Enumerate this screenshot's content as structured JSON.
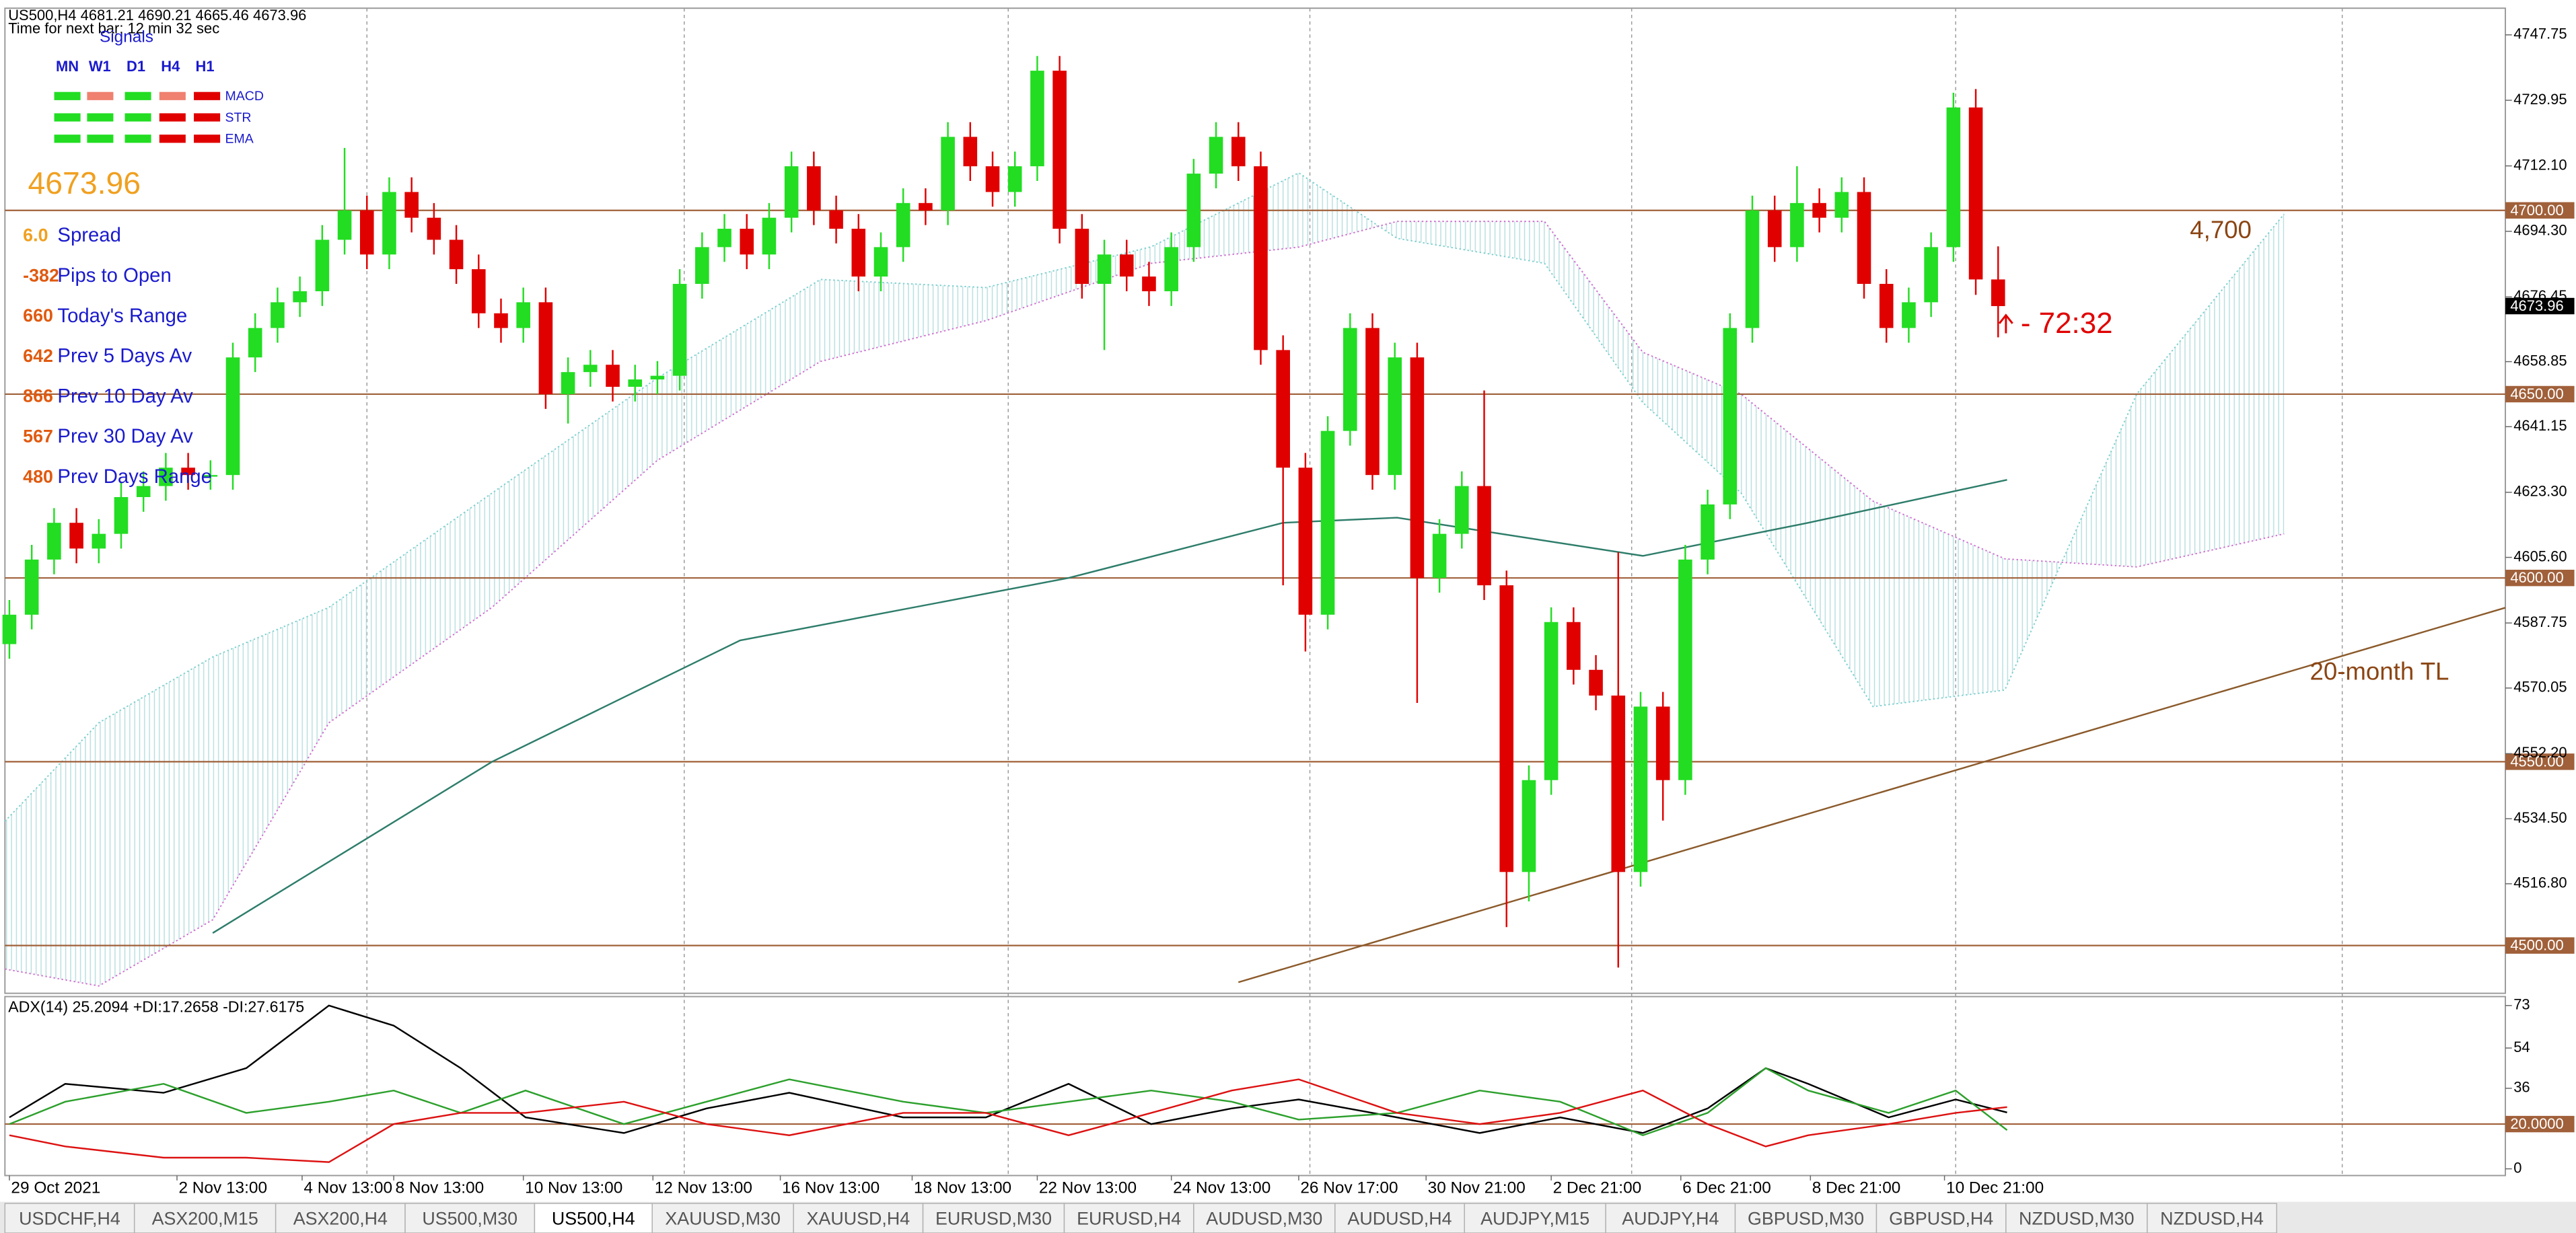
{
  "header": {
    "symbol_line": "US500,H4  4681.21 4690.21 4665.46 4673.96",
    "timer": "Time for next bar: 12 min 32 sec"
  },
  "signals": {
    "title": "Signals",
    "columns": [
      "MN",
      "W1",
      "D1",
      "H4",
      "H1"
    ],
    "rows": [
      {
        "name": "MACD",
        "colors": [
          "#22dd22",
          "#f08070",
          "#22dd22",
          "#f08070",
          "#e00000"
        ]
      },
      {
        "name": "STR",
        "colors": [
          "#22dd22",
          "#22dd22",
          "#22dd22",
          "#e00000",
          "#e00000"
        ]
      },
      {
        "name": "EMA",
        "colors": [
          "#22dd22",
          "#22dd22",
          "#22dd22",
          "#e00000",
          "#e00000"
        ]
      }
    ]
  },
  "info_panel": {
    "price": "4673.96",
    "rows": [
      {
        "value": "6.0",
        "label": "Spread"
      },
      {
        "value": "-382",
        "label": "Pips to Open"
      },
      {
        "value": "660",
        "label": "Today's Range"
      },
      {
        "value": "642",
        "label": "Prev 5 Days Av"
      },
      {
        "value": "866",
        "label": "Prev 10 Day Av"
      },
      {
        "value": "567",
        "label": "Prev 30 Day Av"
      },
      {
        "value": "480",
        "label": "Prev Days Range"
      }
    ]
  },
  "chart_data": [
    {
      "type": "candlestick",
      "up_color": "#22dd22",
      "down_color": "#e00000",
      "xlim": [
        -0.2,
        111.7
      ],
      "ylim": [
        4487,
        4755
      ],
      "open": [
        4582,
        4590,
        4605,
        4615,
        4608,
        4612,
        4622,
        4625,
        4630,
        4628,
        4628,
        4660,
        4668,
        4675,
        4678,
        4692,
        4700,
        4688,
        4705,
        4698,
        4692,
        4684,
        4672,
        4668,
        4675,
        4650,
        4656,
        4658,
        4652,
        4654,
        4655,
        4680,
        4690,
        4695,
        4688,
        4698,
        4712,
        4700,
        4695,
        4682,
        4690,
        4702,
        4700,
        4720,
        4712,
        4705,
        4712,
        4738,
        4695,
        4680,
        4688,
        4682,
        4678,
        4690,
        4710,
        4720,
        4712,
        4662,
        4630,
        4590,
        4640,
        4668,
        4628,
        4660,
        4600,
        4612,
        4625,
        4598,
        4520,
        4545,
        4588,
        4575,
        4568,
        4520,
        4565,
        4545,
        4605,
        4620,
        4668,
        4700,
        4690,
        4702,
        4698,
        4705,
        4680,
        4668,
        4675,
        4690,
        4728,
        4681.21
      ],
      "high": [
        4594,
        4609,
        4619,
        4619,
        4616,
        4626,
        4629,
        4634,
        4634,
        4632,
        4664,
        4672,
        4679,
        4682,
        4696,
        4717,
        4704,
        4709,
        4709,
        4702,
        4696,
        4688,
        4676,
        4679,
        4679,
        4660,
        4662,
        4662,
        4658,
        4659,
        4684,
        4694,
        4699,
        4699,
        4702,
        4716,
        4716,
        4704,
        4699,
        4694,
        4706,
        4706,
        4724,
        4724,
        4716,
        4716,
        4742,
        4742,
        4699,
        4692,
        4692,
        4686,
        4694,
        4714,
        4724,
        4724,
        4716,
        4666,
        4634,
        4644,
        4672,
        4672,
        4664,
        4664,
        4616,
        4629,
        4651,
        4602,
        4549,
        4592,
        4592,
        4579,
        4607,
        4569,
        4569,
        4609,
        4624,
        4672,
        4704,
        4704,
        4712,
        4706,
        4709,
        4709,
        4684,
        4679,
        4694,
        4732,
        4733,
        4690.21
      ],
      "low": [
        4578,
        4586,
        4601,
        4604,
        4604,
        4608,
        4618,
        4621,
        4624,
        4624,
        4624,
        4656,
        4664,
        4671,
        4674,
        4688,
        4684,
        4684,
        4694,
        4688,
        4680,
        4668,
        4664,
        4664,
        4646,
        4642,
        4652,
        4648,
        4648,
        4650,
        4651,
        4676,
        4686,
        4684,
        4684,
        4694,
        4696,
        4691,
        4678,
        4678,
        4686,
        4696,
        4696,
        4708,
        4701,
        4701,
        4708,
        4691,
        4676,
        4662,
        4678,
        4674,
        4674,
        4686,
        4706,
        4708,
        4658,
        4598,
        4580,
        4586,
        4636,
        4624,
        4624,
        4566,
        4596,
        4608,
        4594,
        4505,
        4512,
        4541,
        4571,
        4564,
        4494,
        4516,
        4534,
        4541,
        4601,
        4616,
        4664,
        4686,
        4686,
        4694,
        4694,
        4676,
        4664,
        4664,
        4671,
        4686,
        4677,
        4665.46
      ],
      "close": [
        4590,
        4605,
        4615,
        4608,
        4612,
        4622,
        4625,
        4630,
        4628,
        4628,
        4660,
        4668,
        4675,
        4678,
        4692,
        4700,
        4688,
        4705,
        4698,
        4692,
        4684,
        4672,
        4668,
        4675,
        4650,
        4656,
        4658,
        4652,
        4654,
        4655,
        4680,
        4690,
        4695,
        4688,
        4698,
        4712,
        4700,
        4695,
        4682,
        4690,
        4702,
        4700,
        4720,
        4712,
        4705,
        4712,
        4738,
        4695,
        4680,
        4688,
        4682,
        4678,
        4690,
        4710,
        4720,
        4712,
        4662,
        4630,
        4590,
        4640,
        4668,
        4628,
        4660,
        4600,
        4612,
        4625,
        4598,
        4520,
        4545,
        4588,
        4575,
        4568,
        4520,
        4565,
        4545,
        4605,
        4620,
        4668,
        4700,
        4690,
        4702,
        4698,
        4705,
        4680,
        4668,
        4675,
        4690,
        4728,
        4681.21,
        4673.96
      ],
      "yticks": [
        {
          "value": 4747.75,
          "label": "4747.75"
        },
        {
          "value": 4729.95,
          "label": "4729.95"
        },
        {
          "value": 4712.1,
          "label": "4712.10"
        },
        {
          "value": 4694.3,
          "label": "4694.30"
        },
        {
          "value": 4676.45,
          "label": "4676.45"
        },
        {
          "value": 4658.85,
          "label": "4658.85"
        },
        {
          "value": 4641.15,
          "label": "4641.15"
        },
        {
          "value": 4623.3,
          "label": "4623.30"
        },
        {
          "value": 4605.6,
          "label": "4605.60"
        },
        {
          "value": 4587.75,
          "label": "4587.75"
        },
        {
          "value": 4570.05,
          "label": "4570.05"
        },
        {
          "value": 4552.2,
          "label": "4552.20"
        },
        {
          "value": 4534.5,
          "label": "4534.50"
        },
        {
          "value": 4516.8,
          "label": "4516.80"
        }
      ],
      "xticks": [
        {
          "value": 0,
          "label": "29 Oct 2021"
        },
        {
          "value": 7.5,
          "label": "2 Nov 13:00"
        },
        {
          "value": 13.1,
          "label": "4 Nov 13:00"
        },
        {
          "value": 17.2,
          "label": "8 Nov 13:00"
        },
        {
          "value": 23.0,
          "label": "10 Nov 13:00"
        },
        {
          "value": 28.8,
          "label": "12 Nov 13:00"
        },
        {
          "value": 34.5,
          "label": "16 Nov 13:00"
        },
        {
          "value": 40.4,
          "label": "18 Nov 13:00"
        },
        {
          "value": 46.0,
          "label": "22 Nov 13:00"
        },
        {
          "value": 52.0,
          "label": "24 Nov 13:00"
        },
        {
          "value": 57.7,
          "label": "26 Nov 17:00"
        },
        {
          "value": 63.4,
          "label": "30 Nov 21:00"
        },
        {
          "value": 69.0,
          "label": "2 Dec 21:00"
        },
        {
          "value": 74.8,
          "label": "6 Dec 21:00"
        },
        {
          "value": 80.6,
          "label": "8 Dec 21:00"
        },
        {
          "value": 86.6,
          "label": "10 Dec 21:00"
        }
      ],
      "separators": [
        16.0,
        30.2,
        44.7,
        58.2,
        72.6,
        87.1,
        104.4
      ],
      "levels": [
        {
          "value": 4700,
          "label": "4700.00"
        },
        {
          "value": 4650,
          "label": "4650.00"
        },
        {
          "value": 4600,
          "label": "4600.00"
        },
        {
          "value": 4550,
          "label": "4550.00"
        },
        {
          "value": 4500,
          "label": "4500.00"
        }
      ],
      "level_color": "#a0603a",
      "last_price": {
        "value": 4673.96,
        "label": "4673.96"
      },
      "ma": {
        "color": "#2e7d6b",
        "x": [
          9.1,
          21.6,
          32.7,
          47.4,
          57.0,
          62.1,
          73.1,
          80.5,
          89.4
        ],
        "values": [
          4503.4,
          4550,
          4583,
          4600,
          4615,
          4616.4,
          4606,
          4615,
          4626.7
        ]
      },
      "cloud": {
        "color_a": "#7fcfcf",
        "color_b": "#d070d0",
        "x": [
          -0.2,
          4.0,
          9.1,
          14.3,
          21.6,
          29.0,
          36.3,
          43.7,
          51.1,
          57.7,
          62.1,
          68.7,
          73.1,
          77.5,
          83.4,
          89.3,
          95.2,
          101.8
        ],
        "span_a": [
          4533.8,
          4560.6,
          4578.5,
          4592,
          4623.1,
          4654.4,
          4681.2,
          4679,
          4690.1,
          4710.2,
          4692.4,
          4685.6,
          4647.7,
          4623.1,
          4565,
          4569.5,
          4650,
          4699
        ],
        "span_b": [
          4493.6,
          4489,
          4507,
          4560.6,
          4592,
          4632,
          4658.9,
          4670,
          4685.6,
          4690,
          4697,
          4697,
          4661.4,
          4650,
          4620.9,
          4605.2,
          4603,
          4612
        ]
      },
      "trendline": {
        "color": "#8b5a2b",
        "x": [
          55.0,
          111.7
        ],
        "values": [
          4490,
          4591.9
        ]
      },
      "annotations": [
        {
          "text": "4,700",
          "color": "#8b4513"
        },
        {
          "text": "20-month TL",
          "color": "#8b4513"
        },
        {
          "text": "- 72:32",
          "color": "#e00000"
        }
      ]
    },
    {
      "type": "line",
      "title": "ADX(14) 25.2094 +DI:17.2658 -DI:27.6175",
      "xlim": [
        -0.2,
        111.7
      ],
      "ylim": [
        -3,
        77
      ],
      "yticks": [
        73,
        54,
        36,
        0
      ],
      "levels": [
        {
          "value": 20,
          "label": "20.0000"
        }
      ],
      "x": [
        0.0,
        2.5,
        6.9,
        10.6,
        14.3,
        17.2,
        20.2,
        23.1,
        27.5,
        31.2,
        34.9,
        40.0,
        43.7,
        47.4,
        51.1,
        54.7,
        57.7,
        62.1,
        65.8,
        69.4,
        73.1,
        76.0,
        78.6,
        80.5,
        84.1,
        87.1,
        89.4
      ],
      "series": [
        {
          "color": "#000000",
          "values": [
            23,
            38,
            34,
            45,
            73,
            64,
            45,
            23,
            16,
            27,
            34,
            23,
            23,
            38,
            20,
            27,
            31,
            23,
            16,
            23,
            16,
            27,
            45,
            38,
            23,
            31,
            25.2
          ]
        },
        {
          "color": "#2ca02c",
          "values": [
            20,
            30,
            38,
            25,
            30,
            35,
            25,
            35,
            20,
            30,
            40,
            30,
            25,
            30,
            35,
            30,
            22,
            25,
            35,
            30,
            15,
            25,
            45,
            35,
            25,
            35,
            17.3
          ]
        },
        {
          "color": "#dd1111",
          "values": [
            15,
            10,
            5,
            5,
            3,
            20,
            25,
            25,
            30,
            20,
            15,
            25,
            25,
            15,
            25,
            35,
            40,
            25,
            20,
            25,
            35,
            20,
            10,
            15,
            20,
            25,
            27.6
          ]
        }
      ]
    }
  ],
  "tabs": {
    "active": 4,
    "items": [
      "USDCHF,H4",
      "ASX200,M15",
      "ASX200,H4",
      "US500,M30",
      "US500,H4",
      "XAUUSD,M30",
      "XAUUSD,H4",
      "EURUSD,M30",
      "EURUSD,H4",
      "AUDUSD,M30",
      "AUDUSD,H4",
      "AUDJPY,M15",
      "AUDJPY,H4",
      "GBPUSD,M30",
      "GBPUSD,H4",
      "NZDUSD,M30",
      "NZDUSD,H4"
    ]
  }
}
